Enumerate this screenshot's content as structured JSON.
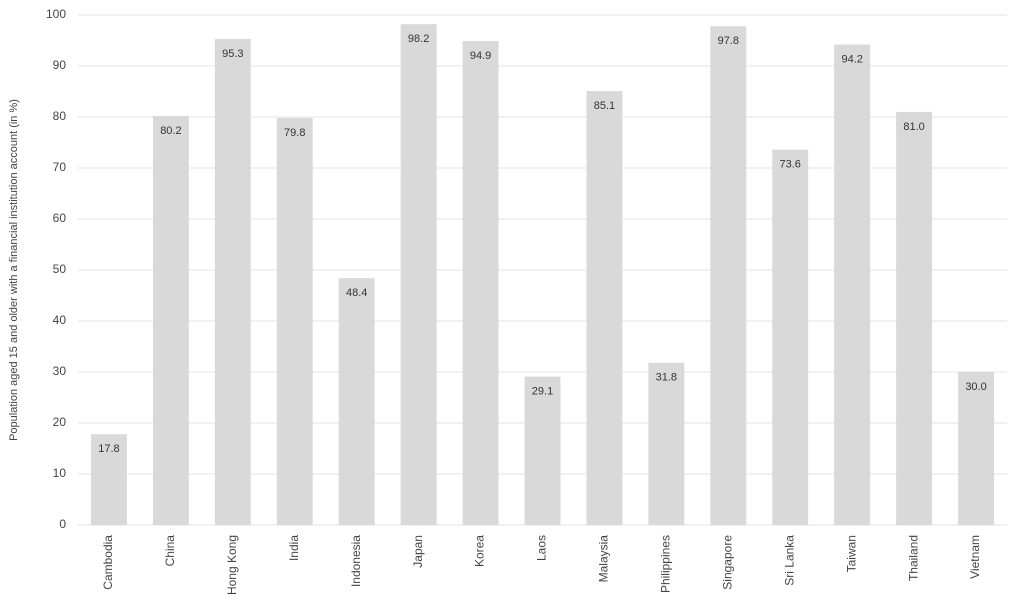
{
  "chart_data": {
    "type": "bar",
    "y_label": "Population aged 15 and older with a financial institution account (in %)",
    "categories": [
      "Cambodia",
      "China",
      "Hong Kong",
      "India",
      "Indonesia",
      "Japan",
      "Korea",
      "Laos",
      "Malaysia",
      "Philippines",
      "Singapore",
      "Sri Lanka",
      "Taiwan",
      "Thailand",
      "Vietnam"
    ],
    "values": [
      17.8,
      80.2,
      95.3,
      79.8,
      48.4,
      98.2,
      94.9,
      29.1,
      85.1,
      31.8,
      97.8,
      73.6,
      94.2,
      81.0,
      30.0
    ],
    "value_labels": [
      "17.8",
      "80.2",
      "95.3",
      "79.8",
      "48.4",
      "98.2",
      "94.9",
      "29.1",
      "85.1",
      "31.8",
      "97.8",
      "73.6",
      "94.2",
      "81.0",
      "30.0"
    ],
    "color": "#d9d9d9",
    "ylim": [
      0,
      100
    ],
    "yticks": [
      0,
      10,
      20,
      30,
      40,
      50,
      60,
      70,
      80,
      90,
      100
    ],
    "grid": true
  }
}
